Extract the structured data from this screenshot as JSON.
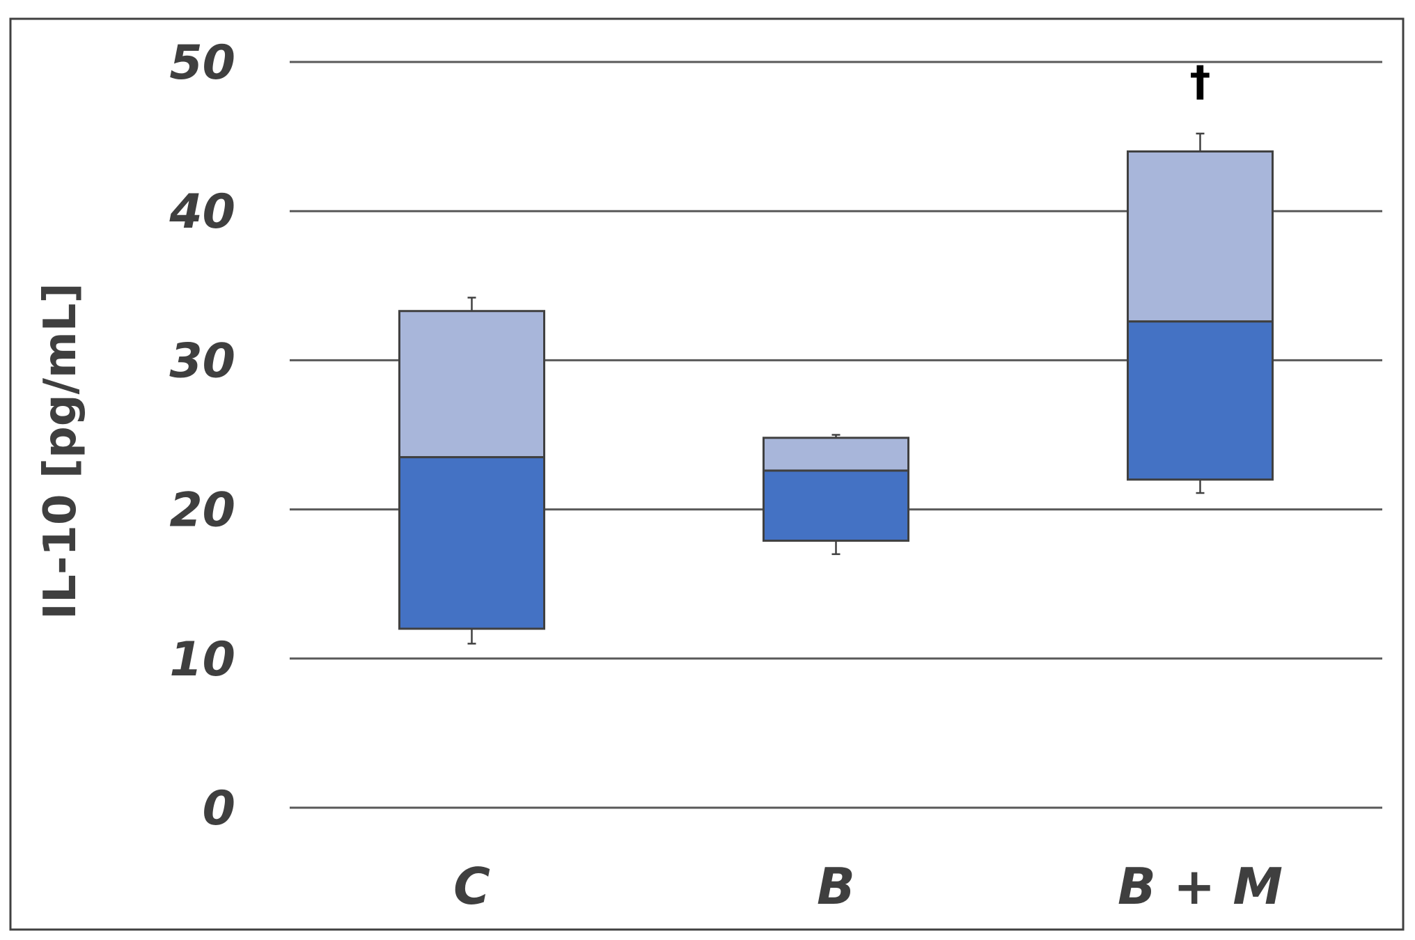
{
  "chart_data": {
    "type": "box",
    "title": "",
    "xlabel": "",
    "ylabel": "IL-10 [pg/mL]",
    "ylim": [
      0,
      50
    ],
    "yticks": [
      0,
      10,
      20,
      30,
      40,
      50
    ],
    "ytick_labels": [
      "0",
      "10",
      "20",
      "30",
      "40",
      "50"
    ],
    "grid": true,
    "categories": [
      "C",
      "B",
      "B + M"
    ],
    "boxes": [
      {
        "category": "C",
        "whisker_low": 11,
        "q1": 12,
        "median": 23.5,
        "q3": 33.3,
        "whisker_high": 34.2
      },
      {
        "category": "B",
        "whisker_low": 17,
        "q1": 17.9,
        "median": 22.6,
        "q3": 24.8,
        "whisker_high": 25
      },
      {
        "category": "B + M",
        "whisker_low": 21.1,
        "q1": 22,
        "median": 32.6,
        "q3": 44,
        "whisker_high": 45.2
      }
    ],
    "annotations": [
      {
        "category": "B + M",
        "text": "†"
      }
    ],
    "colors": {
      "lower_box": "#4472c4",
      "upper_box": "#a8b6da",
      "box_edge": "#404040",
      "grid": "#595959",
      "frame": "#404040"
    }
  }
}
